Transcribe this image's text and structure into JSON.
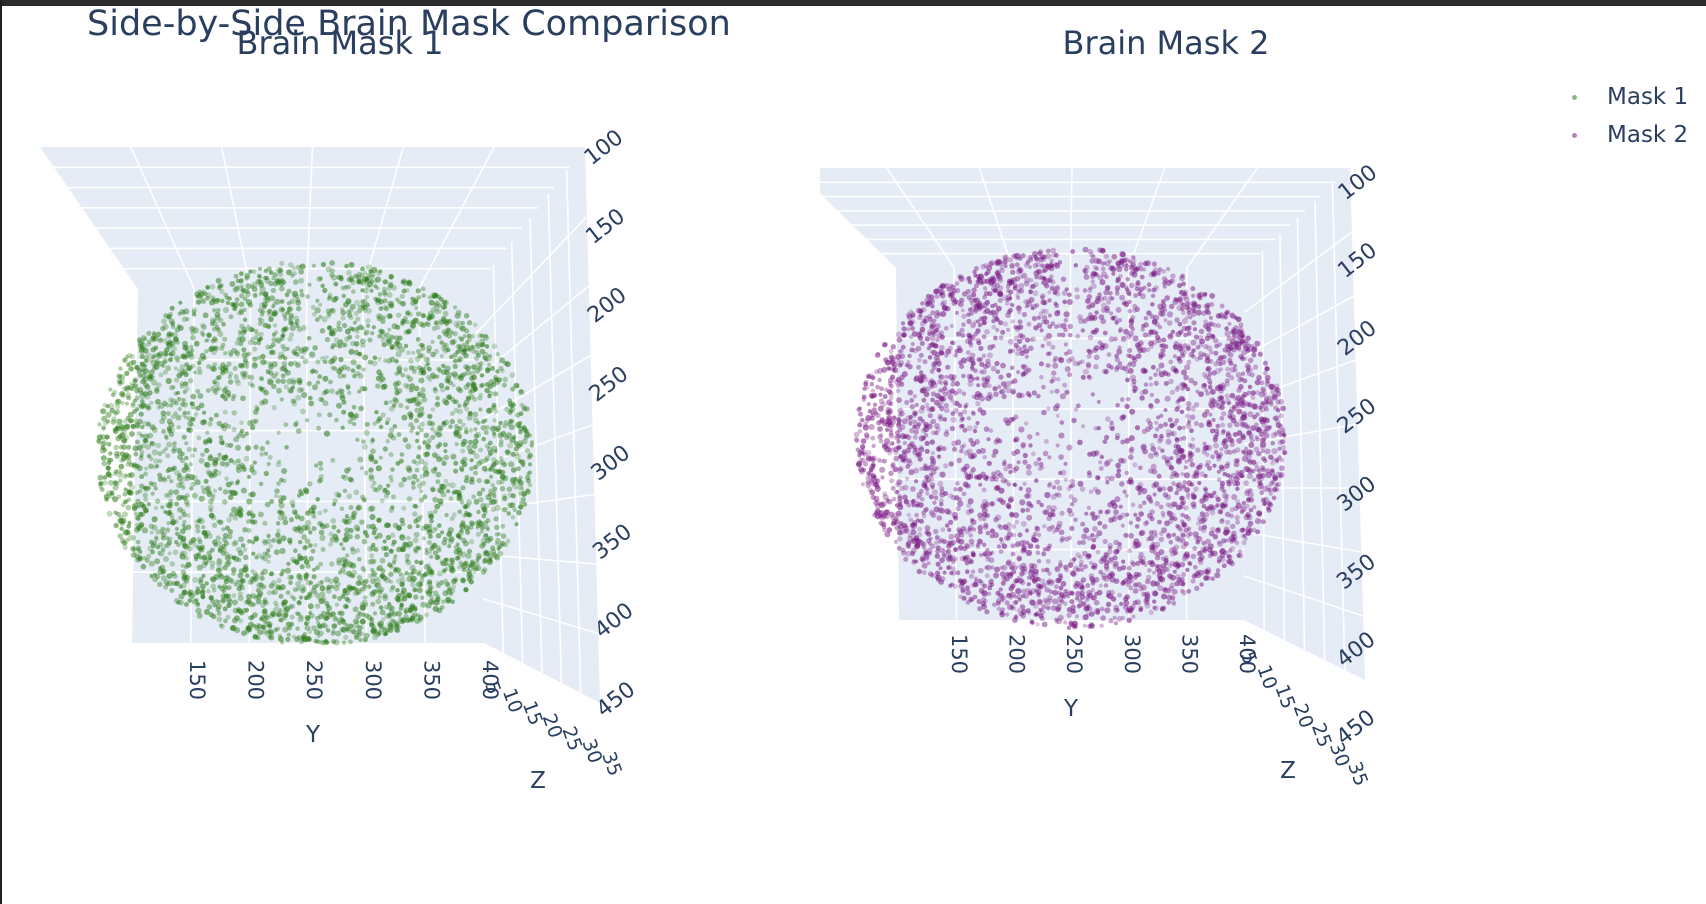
{
  "figure": {
    "title": "Side-by-Side Brain Mask Comparison"
  },
  "legend": {
    "items": [
      {
        "label": "Mask 1",
        "color": "#2e7d1a"
      },
      {
        "label": "Mask 2",
        "color": "#7b1a85"
      }
    ]
  },
  "chart_data": [
    {
      "type": "scatter",
      "subtype": "scatter3d",
      "title": "Brain Mask 1",
      "series": [
        {
          "name": "Mask 1",
          "color": "#2e7d1a",
          "opacity": 0.4
        }
      ],
      "shape": "dense ellipsoidal point cloud (brain mask voxels)",
      "x": {
        "label": "",
        "ticks": []
      },
      "y": {
        "label": "Y",
        "ticks": [
          "150",
          "200",
          "250",
          "300",
          "350",
          "400"
        ],
        "range": [
          100,
          420
        ]
      },
      "z": {
        "label": "Z",
        "ticks": [
          "5",
          "10",
          "15",
          "20",
          "25",
          "30",
          "35"
        ],
        "range": [
          0,
          35
        ]
      },
      "vertical_axis": {
        "ticks": [
          "100",
          "150",
          "200",
          "250",
          "300",
          "350",
          "400",
          "450"
        ],
        "range": [
          100,
          450
        ]
      },
      "grid": true
    },
    {
      "type": "scatter",
      "subtype": "scatter3d",
      "title": "Brain Mask 2",
      "series": [
        {
          "name": "Mask 2",
          "color": "#7b1a85",
          "opacity": 0.4
        }
      ],
      "shape": "dense ellipsoidal point cloud (brain mask voxels)",
      "x": {
        "label": "",
        "ticks": []
      },
      "y": {
        "label": "Y",
        "ticks": [
          "150",
          "200",
          "250",
          "300",
          "350",
          "400"
        ],
        "range": [
          100,
          420
        ]
      },
      "z": {
        "label": "Z",
        "ticks": [
          "5",
          "10",
          "15",
          "20",
          "25",
          "30",
          "35"
        ],
        "range": [
          0,
          35
        ]
      },
      "vertical_axis": {
        "ticks": [
          "100",
          "150",
          "200",
          "250",
          "300",
          "350",
          "400",
          "450"
        ],
        "range": [
          100,
          450
        ]
      },
      "grid": true
    }
  ]
}
